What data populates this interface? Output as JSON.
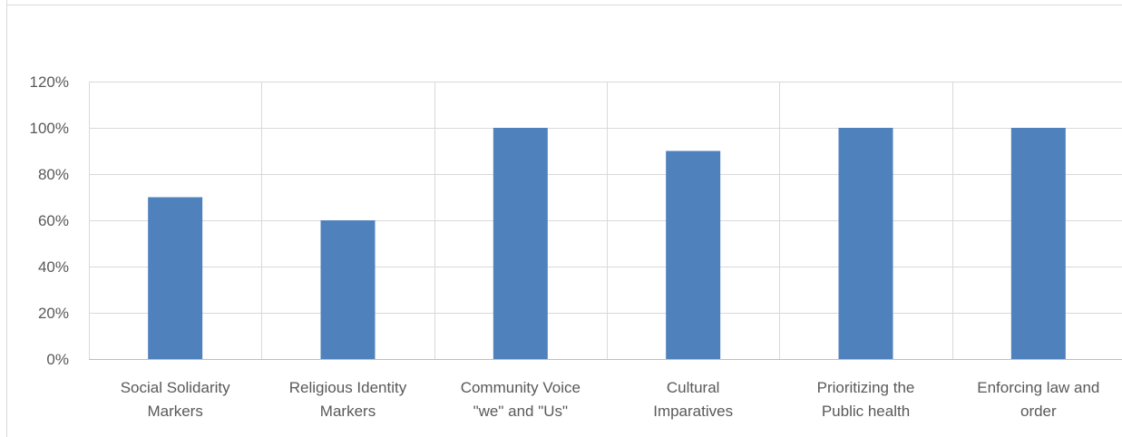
{
  "chart_data": {
    "type": "bar",
    "title": "",
    "xlabel": "",
    "ylabel": "",
    "categories": [
      [
        "Social Solidarity",
        "Markers"
      ],
      [
        "Religious Identity",
        "Markers"
      ],
      [
        "Community Voice",
        "\"we\" and \"Us\""
      ],
      [
        "Cultural",
        "Imparatives"
      ],
      [
        "Prioritizing the",
        "Public health"
      ],
      [
        "Enforcing law and",
        "order"
      ]
    ],
    "values": [
      70,
      60,
      100,
      90,
      100,
      100
    ],
    "ylim": [
      0,
      120
    ],
    "yticks": [
      "0%",
      "20%",
      "40%",
      "60%",
      "80%",
      "100%",
      "120%"
    ],
    "grid": true,
    "legend": "none",
    "colors": {
      "bar": "#4F81BD",
      "grid": "#D9D9D9",
      "axis": "#BFBFBF",
      "text": "#595959",
      "border": "#D9D9D9"
    }
  }
}
